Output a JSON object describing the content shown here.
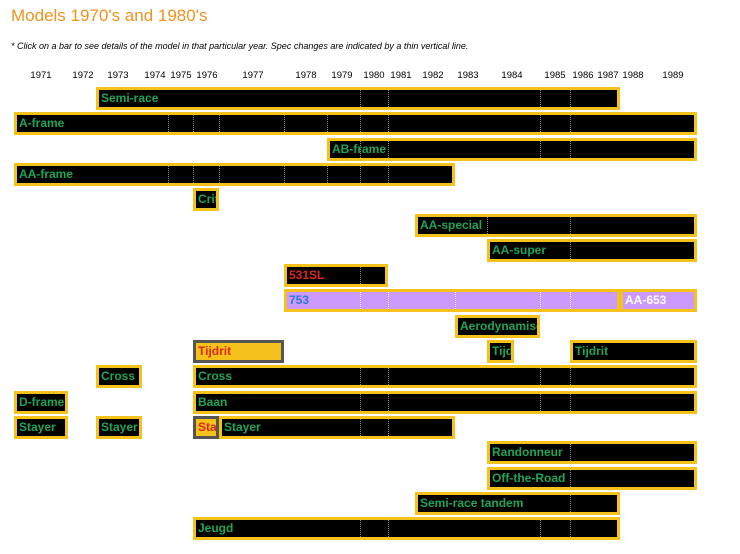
{
  "header": {
    "title": "Models 1970's and 1980's",
    "note": "* Click on a bar to see details of the model in that particular year. Spec changes are indicated by a thin vertical line."
  },
  "colors": {
    "title": "#f0921e",
    "bar_fill": "#000000",
    "bar_border": "#f4c21a",
    "label_green": "#1fa45a",
    "label_red": "#e0271d",
    "highlight_fill": "#f4c21a",
    "highlight_border": "#555555",
    "lavender_fill": "#cc99ff",
    "label_blue": "#2d7ad6"
  },
  "chart_data": {
    "type": "bar",
    "orientation": "horizontal-timeline",
    "years": [
      "1971",
      "1972",
      "1973",
      "1974",
      "1975",
      "1976",
      "1977",
      "1978",
      "1979",
      "1980",
      "1981",
      "1982",
      "1983",
      "1984",
      "1985",
      "1986",
      "1987",
      "1988",
      "1989"
    ],
    "rows": [
      {
        "segments": [
          {
            "label": "Semi-race",
            "start": "1973",
            "end": "1988",
            "dividers": [
              "1980",
              "1981",
              "1985",
              "1986"
            ]
          }
        ]
      },
      {
        "segments": [
          {
            "label": "A-frame",
            "start": "1971",
            "end": "1989",
            "dividers": [
              "1975",
              "1976",
              "1977",
              "1978",
              "1979",
              "1980",
              "1981",
              "1985",
              "1986"
            ]
          }
        ]
      },
      {
        "segments": [
          {
            "label": "AB-frame",
            "start": "1979",
            "end": "1989",
            "dividers": [
              "1980",
              "1981",
              "1985",
              "1986"
            ]
          }
        ]
      },
      {
        "segments": [
          {
            "label": "AA-frame",
            "start": "1971",
            "end": "1983",
            "dividers": [
              "1975",
              "1976",
              "1977",
              "1978",
              "1979",
              "1980",
              "1981"
            ]
          }
        ]
      },
      {
        "segments": [
          {
            "label": "Criterium",
            "start": "1976",
            "end": "1977"
          }
        ]
      },
      {
        "segments": [
          {
            "label": "AA-special",
            "start": "1982",
            "end": "1989",
            "dividers": [
              "1984",
              "1986"
            ]
          }
        ]
      },
      {
        "segments": [
          {
            "label": "AA-super",
            "start": "1984",
            "end": "1989",
            "dividers": [
              "1986"
            ]
          }
        ]
      },
      {
        "segments": [
          {
            "label": "531SL",
            "start": "1978",
            "end": "1981",
            "style": "text-red",
            "dividers": [
              "1980",
              "1981"
            ]
          }
        ]
      },
      {
        "segments": [
          {
            "label": "753",
            "start": "1978",
            "end": "1988",
            "style": "lavender",
            "dividers": [
              "1980",
              "1981",
              "1983",
              "1985",
              "1986"
            ]
          },
          {
            "label": "AA-653",
            "start": "1988",
            "end": "1989",
            "style": "lavender-end"
          }
        ]
      },
      {
        "segments": [
          {
            "label": "Aerodynamisch",
            "start": "1983",
            "end": "1985"
          }
        ]
      },
      {
        "segments": [
          {
            "label": "Tijdrit",
            "start": "1976",
            "end": "1978",
            "style": "orange"
          },
          {
            "label": "Tijdrit",
            "start": "1984",
            "end": "1984.5"
          },
          {
            "label": "Tijdrit",
            "start": "1986",
            "end": "1989"
          }
        ]
      },
      {
        "segments": [
          {
            "label": "Cross",
            "start": "1973",
            "end": "1974"
          },
          {
            "label": "Cross",
            "start": "1976",
            "end": "1989",
            "dividers": [
              "1980",
              "1981",
              "1985",
              "1986"
            ]
          }
        ]
      },
      {
        "segments": [
          {
            "label": "D-frame",
            "start": "1971",
            "end": "1972"
          },
          {
            "label": "Baan",
            "start": "1976",
            "end": "1989",
            "dividers": [
              "1980",
              "1981",
              "1985",
              "1986"
            ]
          }
        ]
      },
      {
        "segments": [
          {
            "label": "Stayer",
            "start": "1971",
            "end": "1972"
          },
          {
            "label": "Stayer",
            "start": "1973",
            "end": "1974"
          },
          {
            "label": "Stayer",
            "start": "1976",
            "end": "1977",
            "style": "orange"
          },
          {
            "label": "Stayer",
            "start": "1977",
            "end": "1983",
            "dividers": [
              "1980",
              "1981"
            ]
          }
        ]
      },
      {
        "segments": [
          {
            "label": "Randonneur",
            "start": "1984",
            "end": "1989",
            "dividers": [
              "1986"
            ]
          }
        ]
      },
      {
        "segments": [
          {
            "label": "Off-the-Road",
            "start": "1984",
            "end": "1989",
            "dividers": [
              "1986"
            ]
          }
        ]
      },
      {
        "segments": [
          {
            "label": "Semi-race tandem",
            "start": "1982",
            "end": "1988",
            "dividers": [
              "1986"
            ]
          }
        ]
      },
      {
        "segments": [
          {
            "label": "Jeugd",
            "start": "1976",
            "end": "1988",
            "dividers": [
              "1980",
              "1981",
              "1985",
              "1986"
            ]
          }
        ]
      }
    ]
  }
}
